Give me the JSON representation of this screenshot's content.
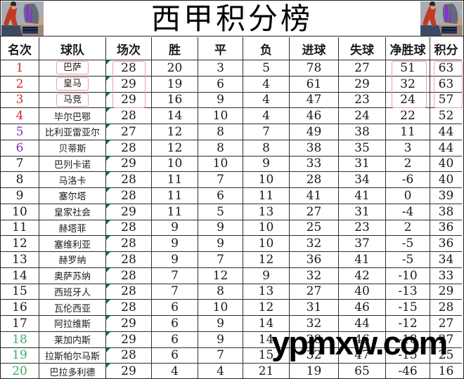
{
  "page": {
    "title": "西甲积分榜",
    "watermark": "ypmxw.com"
  },
  "colors": {
    "rank_top_red": "#d42a2a",
    "rank_europe_purple": "#7b35b8",
    "rank_relegation_green": "#35ae6b",
    "rank_default_black": "#1a1a1a",
    "highlight_box_pink": "#f09f9f",
    "flag_triangle_green": "#1e7a2e",
    "grid_line": "#2e2e2e"
  },
  "chart_data": {
    "type": "table",
    "title": "西甲积分榜",
    "columns": [
      "名次",
      "球队",
      "场次",
      "胜",
      "平",
      "负",
      "进球",
      "失球",
      "净胜球",
      "积分"
    ],
    "rows": [
      {
        "cells": [
          "1",
          "巴萨",
          "28",
          "20",
          "3",
          "5",
          "78",
          "27",
          "51",
          "63"
        ],
        "rank_color": "#d42a2a",
        "boxed": true
      },
      {
        "cells": [
          "2",
          "皇马",
          "29",
          "19",
          "6",
          "4",
          "61",
          "29",
          "32",
          "63"
        ],
        "rank_color": "#d42a2a",
        "boxed": true
      },
      {
        "cells": [
          "3",
          "马竞",
          "29",
          "16",
          "9",
          "4",
          "47",
          "23",
          "24",
          "57"
        ],
        "rank_color": "#d42a2a",
        "boxed": true
      },
      {
        "cells": [
          "4",
          "毕尔巴鄂",
          "28",
          "14",
          "10",
          "4",
          "46",
          "24",
          "22",
          "52"
        ],
        "rank_color": "#d42a2a",
        "boxed": false
      },
      {
        "cells": [
          "5",
          "比利亚雷亚尔",
          "27",
          "12",
          "8",
          "7",
          "49",
          "38",
          "11",
          "44"
        ],
        "rank_color": "#7b35b8",
        "boxed": false
      },
      {
        "cells": [
          "6",
          "贝蒂斯",
          "28",
          "12",
          "8",
          "8",
          "38",
          "35",
          "3",
          "44"
        ],
        "rank_color": "#7b35b8",
        "boxed": false
      },
      {
        "cells": [
          "7",
          "巴列卡诺",
          "29",
          "10",
          "10",
          "9",
          "33",
          "31",
          "2",
          "40"
        ],
        "rank_color": "#1a1a1a",
        "boxed": false
      },
      {
        "cells": [
          "8",
          "马洛卡",
          "28",
          "11",
          "7",
          "10",
          "28",
          "34",
          "-6",
          "40"
        ],
        "rank_color": "#1a1a1a",
        "boxed": false
      },
      {
        "cells": [
          "9",
          "塞尔塔",
          "28",
          "11",
          "6",
          "11",
          "41",
          "41",
          "0",
          "39"
        ],
        "rank_color": "#1a1a1a",
        "boxed": false
      },
      {
        "cells": [
          "10",
          "皇家社会",
          "29",
          "11",
          "5",
          "13",
          "27",
          "31",
          "-4",
          "38"
        ],
        "rank_color": "#1a1a1a",
        "boxed": false
      },
      {
        "cells": [
          "11",
          "赫塔菲",
          "28",
          "9",
          "9",
          "10",
          "25",
          "23",
          "2",
          "36"
        ],
        "rank_color": "#1a1a1a",
        "boxed": false
      },
      {
        "cells": [
          "12",
          "塞维利亚",
          "28",
          "9",
          "9",
          "10",
          "32",
          "37",
          "-5",
          "36"
        ],
        "rank_color": "#1a1a1a",
        "boxed": false
      },
      {
        "cells": [
          "13",
          "赫罗纳",
          "28",
          "9",
          "7",
          "12",
          "36",
          "41",
          "-5",
          "34"
        ],
        "rank_color": "#1a1a1a",
        "boxed": false
      },
      {
        "cells": [
          "14",
          "奥萨苏纳",
          "28",
          "7",
          "12",
          "9",
          "32",
          "42",
          "-10",
          "33"
        ],
        "rank_color": "#1a1a1a",
        "boxed": false
      },
      {
        "cells": [
          "15",
          "西班牙人",
          "28",
          "7",
          "8",
          "13",
          "27",
          "40",
          "-13",
          "29"
        ],
        "rank_color": "#1a1a1a",
        "boxed": false
      },
      {
        "cells": [
          "16",
          "瓦伦西亚",
          "28",
          "6",
          "10",
          "12",
          "31",
          "46",
          "-15",
          "28"
        ],
        "rank_color": "#1a1a1a",
        "boxed": false
      },
      {
        "cells": [
          "17",
          "阿拉维斯",
          "29",
          "6",
          "9",
          "14",
          "32",
          "44",
          "-12",
          "27"
        ],
        "rank_color": "#1a1a1a",
        "boxed": false
      },
      {
        "cells": [
          "18",
          "莱加内斯",
          "29",
          "6",
          "9",
          "14",
          "28",
          "46",
          "-18",
          "27"
        ],
        "rank_color": "#35ae6b",
        "boxed": false
      },
      {
        "cells": [
          "19",
          "拉斯帕尔马斯",
          "28",
          "6",
          "7",
          "15",
          "32",
          "47",
          "-15",
          "25"
        ],
        "rank_color": "#35ae6b",
        "boxed": false
      },
      {
        "cells": [
          "20",
          "巴拉多利德",
          "29",
          "4",
          "4",
          "21",
          "19",
          "65",
          "-46",
          "16"
        ],
        "rank_color": "#35ae6b",
        "boxed": false
      }
    ]
  }
}
